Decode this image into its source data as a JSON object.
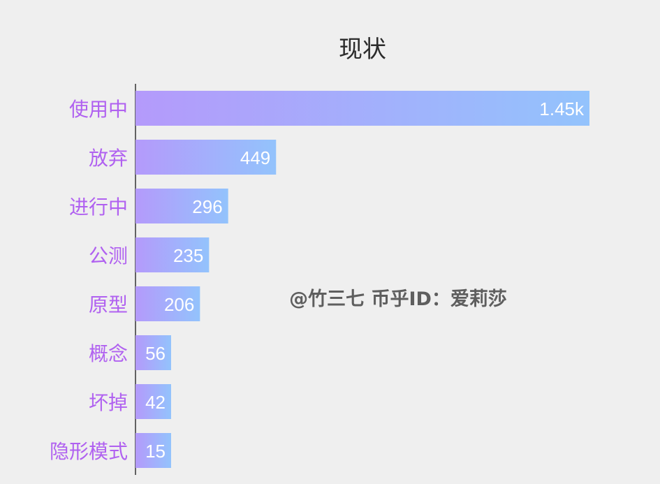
{
  "chart_data": {
    "type": "bar",
    "orientation": "horizontal",
    "title": "现状",
    "categories": [
      "使用中",
      "放弃",
      "进行中",
      "公测",
      "原型",
      "概念",
      "坏掉",
      "隐形模式"
    ],
    "values": [
      1450,
      449,
      296,
      235,
      206,
      56,
      42,
      15
    ],
    "value_labels": [
      "1.45k",
      "449",
      "296",
      "235",
      "206",
      "56",
      "42",
      "15"
    ],
    "xlabel": "",
    "ylabel": "",
    "grid": false,
    "gradient": {
      "start": "#b49afb",
      "end": "#93c3fc"
    },
    "label_color": "#b061f0"
  },
  "watermark": "@竹三七 币乎ID：爱莉莎"
}
